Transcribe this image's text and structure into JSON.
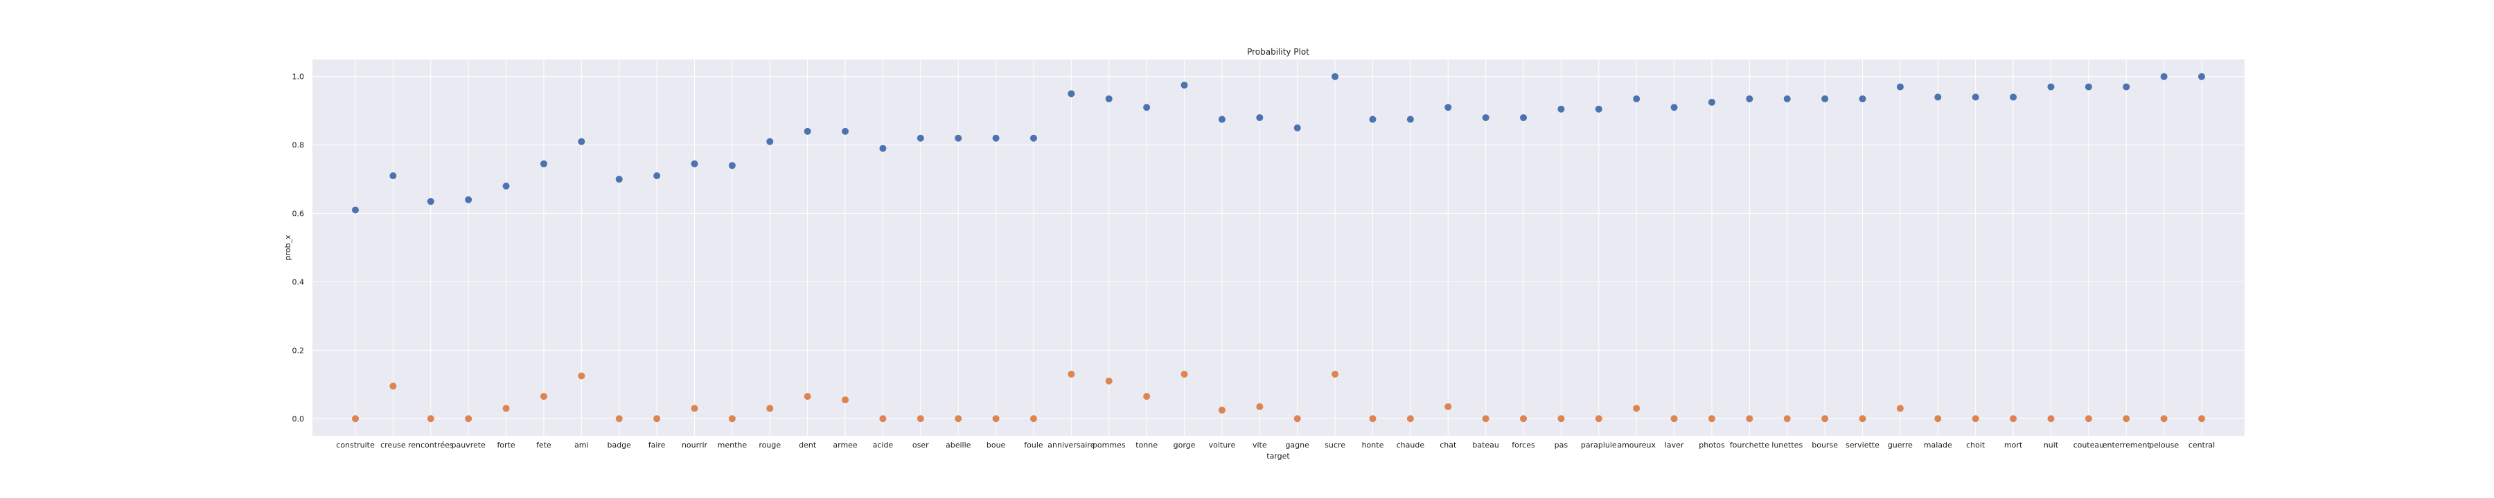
{
  "chart_data": {
    "type": "scatter",
    "title": "Probability Plot",
    "xlabel": "target",
    "ylabel": "prob_x",
    "ylim": [
      -0.05,
      1.05
    ],
    "yticks": [
      0.0,
      0.2,
      0.4,
      0.6,
      0.8,
      1.0
    ],
    "ytick_labels": [
      "0.0",
      "0.2",
      "0.4",
      "0.6",
      "0.8",
      "1.0"
    ],
    "grid": true,
    "categories": [
      "construite",
      "creuse",
      "rencontrées",
      "pauvrete",
      "forte",
      "fete",
      "ami",
      "badge",
      "faire",
      "nourrir",
      "menthe",
      "rouge",
      "dent",
      "armee",
      "acide",
      "oser",
      "abeille",
      "boue",
      "foule",
      "anniversaire",
      "pommes",
      "tonne",
      "gorge",
      "voiture",
      "vite",
      "gagne",
      "sucre",
      "honte",
      "chaude",
      "chat",
      "bateau",
      "forces",
      "pas",
      "parapluie",
      "amoureux",
      "laver",
      "photos",
      "fourchette",
      "lunettes",
      "bourse",
      "serviette",
      "guerre",
      "malade",
      "choit",
      "mort",
      "nuit",
      "couteau",
      "enterrement",
      "pelouse",
      "central"
    ],
    "series": [
      {
        "name": "blue",
        "color": "#4c72b0",
        "values": [
          0.61,
          0.71,
          0.635,
          0.64,
          0.68,
          0.745,
          0.81,
          0.7,
          0.71,
          0.745,
          0.74,
          0.81,
          0.84,
          0.84,
          0.79,
          0.82,
          0.82,
          0.82,
          0.82,
          0.95,
          0.935,
          0.91,
          0.975,
          0.875,
          0.88,
          0.85,
          1.0,
          0.875,
          0.875,
          0.91,
          0.88,
          0.88,
          0.905,
          0.905,
          0.935,
          0.91,
          0.925,
          0.935,
          0.935,
          0.935,
          0.935,
          0.97,
          0.94,
          0.94,
          0.94,
          0.97,
          0.97,
          0.97,
          1.0,
          1.0
        ]
      },
      {
        "name": "orange",
        "color": "#dd8452",
        "values": [
          0.0,
          0.095,
          0.0,
          0.0,
          0.03,
          0.065,
          0.125,
          0.0,
          0.0,
          0.03,
          0.0,
          0.03,
          0.065,
          0.055,
          0.0,
          0.0,
          0.0,
          0.0,
          0.0,
          0.13,
          0.11,
          0.065,
          0.13,
          0.025,
          0.035,
          0.0,
          0.13,
          0.0,
          0.0,
          0.035,
          0.0,
          0.0,
          0.0,
          0.0,
          0.03,
          0.0,
          0.0,
          0.0,
          0.0,
          0.0,
          0.0,
          0.03,
          0.0,
          0.0,
          0.0,
          0.0,
          0.0,
          0.0,
          0.0,
          0.0
        ]
      }
    ]
  }
}
